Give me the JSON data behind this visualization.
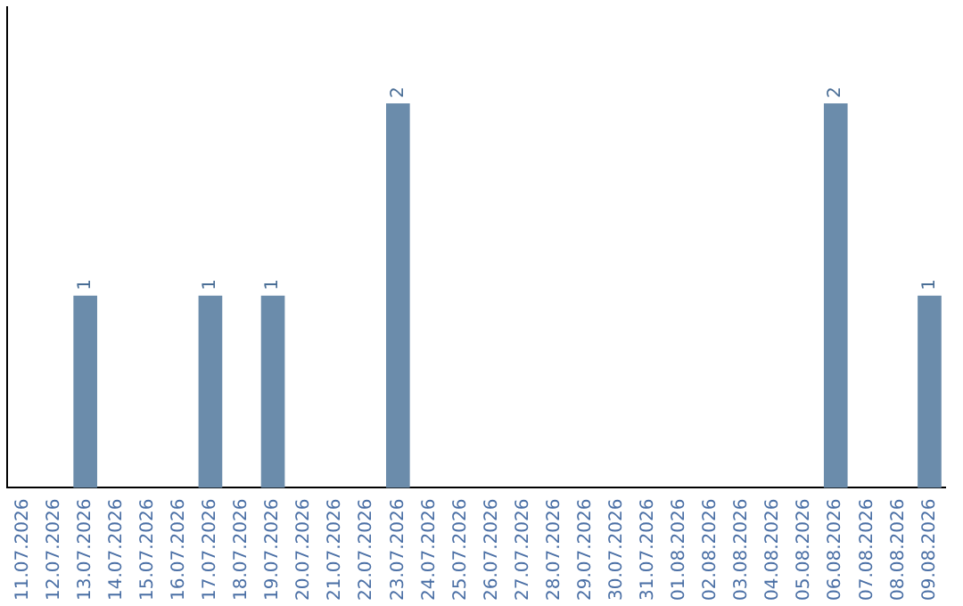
{
  "chart_data": {
    "type": "bar",
    "categories": [
      "11.07.2026",
      "12.07.2026",
      "13.07.2026",
      "14.07.2026",
      "15.07.2026",
      "16.07.2026",
      "17.07.2026",
      "18.07.2026",
      "19.07.2026",
      "20.07.2026",
      "21.07.2026",
      "22.07.2026",
      "23.07.2026",
      "24.07.2026",
      "25.07.2026",
      "26.07.2026",
      "27.07.2026",
      "28.07.2026",
      "29.07.2026",
      "30.07.2026",
      "31.07.2026",
      "01.08.2026",
      "02.08.2026",
      "03.08.2026",
      "04.08.2026",
      "05.08.2026",
      "06.08.2026",
      "07.08.2026",
      "08.08.2026",
      "09.08.2026"
    ],
    "values": [
      0,
      0,
      1,
      0,
      0,
      0,
      1,
      0,
      1,
      0,
      0,
      0,
      2,
      0,
      0,
      0,
      0,
      0,
      0,
      0,
      0,
      0,
      0,
      0,
      0,
      0,
      2,
      0,
      0,
      1
    ],
    "value_labels": [
      null,
      null,
      "1",
      null,
      null,
      null,
      "1",
      null,
      "1",
      null,
      null,
      null,
      "2",
      null,
      null,
      null,
      null,
      null,
      null,
      null,
      null,
      null,
      null,
      null,
      null,
      null,
      "2",
      null,
      null,
      "1"
    ],
    "color": "#6b8cab",
    "grid": false,
    "legend": false
  }
}
